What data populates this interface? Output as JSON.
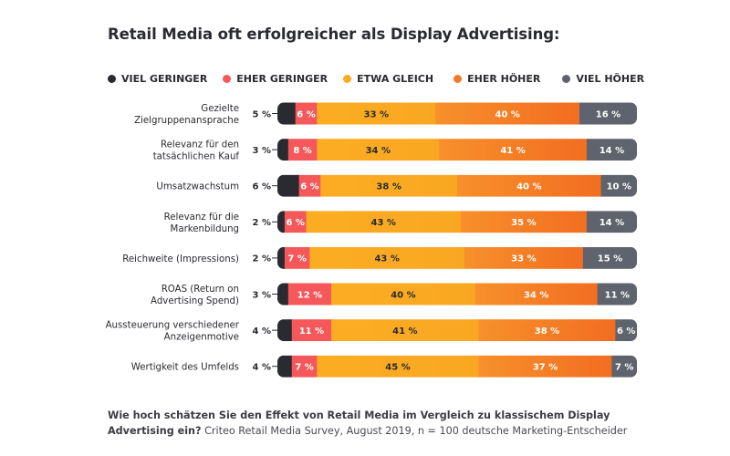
{
  "title": "Retail Media oft erfolgreicher als Display Advertising:",
  "legend": [
    {
      "label": "VIEL GERINGER",
      "color": "#2a2b30"
    },
    {
      "label": "EHER GERINGER",
      "color": "#f4585a"
    },
    {
      "label": "ETWA GLEICH",
      "color": "#fbab22"
    },
    {
      "label": "EHER HÖHER",
      "color": "#f37b25"
    },
    {
      "label": "VIEL HÖHER",
      "color": "#5f636d"
    }
  ],
  "chart_data": {
    "type": "bar",
    "orientation": "horizontal-stacked-100",
    "title": "Retail Media oft erfolgreicher als Display Advertising:",
    "categories": [
      "Gezielte Zielgruppenansprache",
      "Relevanz für den tatsächlichen Kauf",
      "Umsatzwachstum",
      "Relevanz für die Markenbildung",
      "Reichweite (Impressions)",
      "ROAS (Return on Advertising Spend)",
      "Aussteuerung verschiedener Anzeigenmotive",
      "Wertigkeit des Umfelds"
    ],
    "category_lines": [
      [
        "Gezielte",
        "Zielgruppenansprache"
      ],
      [
        "Relevanz für den",
        "tatsächlichen Kauf"
      ],
      [
        "Umsatzwachstum"
      ],
      [
        "Relevanz für die",
        "Markenbildung"
      ],
      [
        "Reichweite (Impressions)"
      ],
      [
        "ROAS (Return on",
        "Advertising Spend)"
      ],
      [
        "Aussteuerung verschiedener",
        "Anzeigenmotive"
      ],
      [
        "Wertigkeit des Umfelds"
      ]
    ],
    "series": [
      {
        "name": "VIEL GERINGER",
        "color": "#2a2b30",
        "values": [
          5,
          3,
          6,
          2,
          2,
          3,
          4,
          4
        ]
      },
      {
        "name": "EHER GERINGER",
        "color": "#f4585a",
        "values": [
          6,
          8,
          6,
          6,
          7,
          12,
          11,
          7
        ]
      },
      {
        "name": "ETWA GLEICH",
        "color": "#fbab22",
        "values": [
          33,
          34,
          38,
          43,
          43,
          40,
          41,
          45
        ]
      },
      {
        "name": "EHER HÖHER",
        "color": "#f37b25",
        "values": [
          40,
          41,
          40,
          35,
          33,
          34,
          38,
          37
        ]
      },
      {
        "name": "VIEL HÖHER",
        "color": "#5f636d",
        "values": [
          16,
          14,
          10,
          14,
          15,
          11,
          6,
          7
        ]
      }
    ],
    "value_suffix": " %",
    "xlim": [
      0,
      100
    ],
    "grid": false,
    "legend_position": "top"
  },
  "footer": {
    "question": "Wie hoch schätzen Sie den Effekt von Retail Media im Vergleich zu klassischem Display Advertising ein?",
    "source": "Criteo Retail Media Survey, August 2019, n = 100 deutsche Marketing-Entscheider"
  }
}
